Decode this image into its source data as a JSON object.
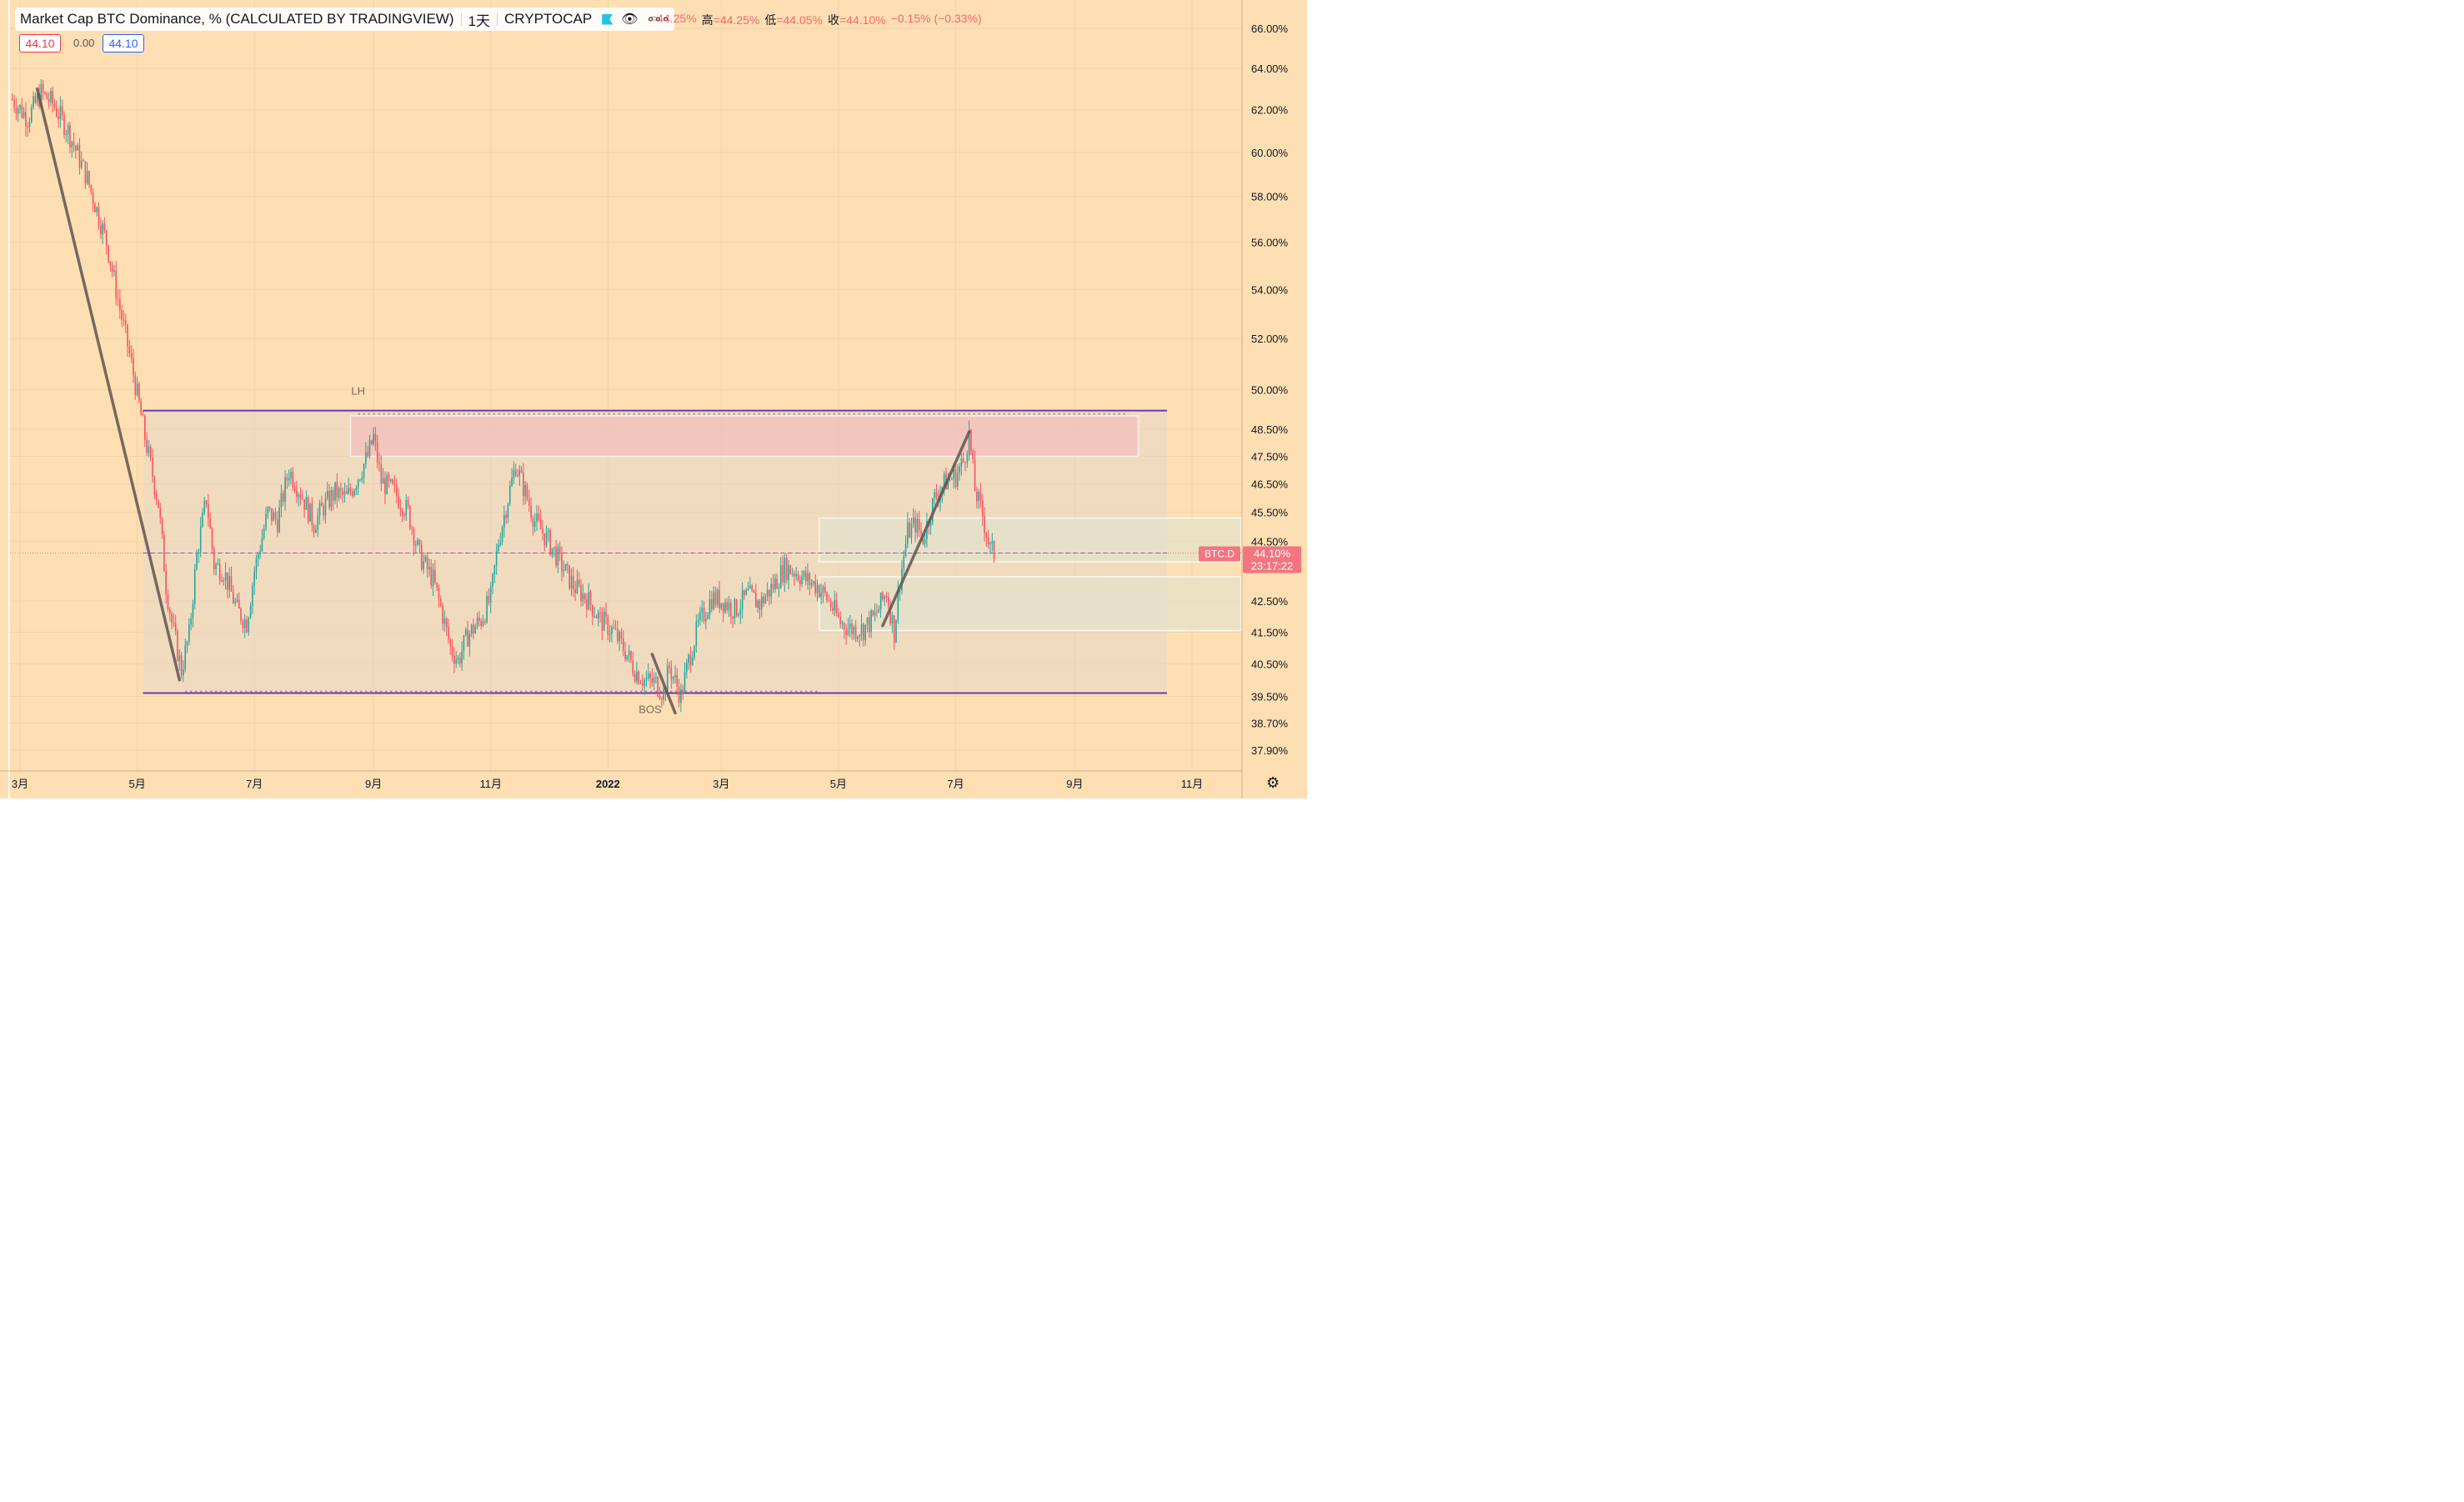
{
  "header": {
    "title": "Market Cap BTC Dominance, % (CALCULATED BY TRADINGVIEW)",
    "interval": "1天",
    "exchange": "CRYPTOCAP",
    "ohlc": [
      {
        "label": "",
        "value": "=44.25%"
      },
      {
        "label": "高",
        "value": "=44.25%"
      },
      {
        "label": "低",
        "value": "=44.05%"
      },
      {
        "label": "收",
        "value": "=44.10%"
      },
      {
        "label": "",
        "value": "−0.15% (−0.33%)"
      }
    ],
    "price_left": "44.10",
    "price_mid": "0.00",
    "price_right": "44.10"
  },
  "icons": {
    "eye": "eye-icon",
    "more": "more-icon",
    "gear": "gear-icon",
    "flag": "flag-icon"
  },
  "colors": {
    "background": "#fedfb3",
    "up": "#26a69a",
    "down": "#f7525f",
    "range_line": "#673ab7",
    "trend_line": "#5d5550",
    "price_tag": "#f2757f"
  },
  "chart_data": {
    "type": "candlestick",
    "title": "Market Cap BTC Dominance, % (CALCULATED BY TRADINGVIEW)",
    "ylim": [
      37.5,
      67.0
    ],
    "y_scale": "log",
    "y_ticks": [
      "66.00%",
      "64.00%",
      "62.00%",
      "60.00%",
      "58.00%",
      "56.00%",
      "54.00%",
      "52.00%",
      "50.00%",
      "48.50%",
      "47.50%",
      "46.50%",
      "45.50%",
      "44.50%",
      "42.50%",
      "41.50%",
      "40.50%",
      "39.50%",
      "38.70%",
      "37.90%"
    ],
    "y_tick_values": [
      66,
      64,
      62,
      60,
      58,
      56,
      54,
      52,
      50,
      48.5,
      47.5,
      46.5,
      45.5,
      44.5,
      42.5,
      41.5,
      40.5,
      39.5,
      38.7,
      37.9
    ],
    "x_ticks": [
      {
        "label": "3月",
        "date": "2021-03-01"
      },
      {
        "label": "5月",
        "date": "2021-05-01"
      },
      {
        "label": "7月",
        "date": "2021-07-01"
      },
      {
        "label": "9月",
        "date": "2021-09-01"
      },
      {
        "label": "11月",
        "date": "2021-11-01"
      },
      {
        "label": "2022",
        "date": "2022-01-01"
      },
      {
        "label": "3月",
        "date": "2022-03-01"
      },
      {
        "label": "5月",
        "date": "2022-05-01"
      },
      {
        "label": "7月",
        "date": "2022-07-01"
      },
      {
        "label": "9月",
        "date": "2022-09-01"
      },
      {
        "label": "11月",
        "date": "2022-11-01"
      }
    ],
    "series": [
      {
        "kind": "close_path",
        "points": [
          [
            "2021-02-25",
            62.5
          ],
          [
            "2021-03-05",
            61.6
          ],
          [
            "2021-03-12",
            62.8
          ],
          [
            "2021-03-18",
            62.3
          ],
          [
            "2021-03-26",
            61.0
          ],
          [
            "2021-04-05",
            58.8
          ],
          [
            "2021-04-15",
            56.0
          ],
          [
            "2021-04-22",
            53.2
          ],
          [
            "2021-04-28",
            51.0
          ],
          [
            "2021-05-05",
            48.2
          ],
          [
            "2021-05-12",
            45.8
          ],
          [
            "2021-05-16",
            43.0
          ],
          [
            "2021-05-19",
            41.8
          ],
          [
            "2021-05-24",
            40.3
          ],
          [
            "2021-05-28",
            41.4
          ],
          [
            "2021-06-01",
            44.0
          ],
          [
            "2021-06-06",
            46.0
          ],
          [
            "2021-06-10",
            43.7
          ],
          [
            "2021-06-15",
            43.5
          ],
          [
            "2021-06-22",
            42.2
          ],
          [
            "2021-06-27",
            41.8
          ],
          [
            "2021-07-01",
            43.5
          ],
          [
            "2021-07-08",
            45.5
          ],
          [
            "2021-07-13",
            45.2
          ],
          [
            "2021-07-19",
            47.0
          ],
          [
            "2021-07-25",
            46.2
          ],
          [
            "2021-08-01",
            45.1
          ],
          [
            "2021-08-06",
            45.7
          ],
          [
            "2021-08-12",
            46.2
          ],
          [
            "2021-08-18",
            46.0
          ],
          [
            "2021-08-22",
            46.5
          ],
          [
            "2021-08-29",
            47.5
          ],
          [
            "2021-09-01",
            48.2
          ],
          [
            "2021-09-05",
            46.6
          ],
          [
            "2021-09-12",
            46.2
          ],
          [
            "2021-09-19",
            45.5
          ],
          [
            "2021-09-25",
            44.0
          ],
          [
            "2021-10-02",
            43.2
          ],
          [
            "2021-10-06",
            42.3
          ],
          [
            "2021-10-11",
            41.0
          ],
          [
            "2021-10-15",
            40.6
          ],
          [
            "2021-10-20",
            41.4
          ],
          [
            "2021-10-27",
            41.9
          ],
          [
            "2021-11-01",
            42.6
          ],
          [
            "2021-11-05",
            44.5
          ],
          [
            "2021-11-10",
            46.0
          ],
          [
            "2021-11-14",
            47.2
          ],
          [
            "2021-11-19",
            46.2
          ],
          [
            "2021-11-24",
            45.2
          ],
          [
            "2021-12-01",
            44.5
          ],
          [
            "2021-12-07",
            43.8
          ],
          [
            "2021-12-14",
            43.0
          ],
          [
            "2021-12-21",
            42.6
          ],
          [
            "2021-12-28",
            41.9
          ],
          [
            "2022-01-04",
            41.5
          ],
          [
            "2022-01-10",
            40.9
          ],
          [
            "2022-01-15",
            40.3
          ],
          [
            "2022-01-20",
            40.0
          ],
          [
            "2022-01-26",
            39.9
          ],
          [
            "2022-01-30",
            39.6
          ],
          [
            "2022-02-02",
            40.4
          ],
          [
            "2022-02-08",
            39.5
          ],
          [
            "2022-02-12",
            40.6
          ],
          [
            "2022-02-17",
            41.7
          ],
          [
            "2022-02-24",
            42.6
          ],
          [
            "2022-03-02",
            42.5
          ],
          [
            "2022-03-08",
            42.2
          ],
          [
            "2022-03-15",
            42.7
          ],
          [
            "2022-03-21",
            42.4
          ],
          [
            "2022-03-28",
            43.0
          ],
          [
            "2022-04-03",
            43.6
          ],
          [
            "2022-04-08",
            43.5
          ],
          [
            "2022-04-14",
            43.2
          ],
          [
            "2022-04-20",
            43.0
          ],
          [
            "2022-04-26",
            42.5
          ],
          [
            "2022-05-02",
            41.8
          ],
          [
            "2022-05-08",
            41.6
          ],
          [
            "2022-05-14",
            41.6
          ],
          [
            "2022-05-20",
            42.0
          ],
          [
            "2022-05-26",
            42.8
          ],
          [
            "2022-05-30",
            41.5
          ],
          [
            "2022-06-02",
            43.2
          ],
          [
            "2022-06-06",
            44.8
          ],
          [
            "2022-06-10",
            45.1
          ],
          [
            "2022-06-14",
            44.6
          ],
          [
            "2022-06-20",
            46.0
          ],
          [
            "2022-06-26",
            46.6
          ],
          [
            "2022-07-01",
            46.8
          ],
          [
            "2022-07-05",
            47.3
          ],
          [
            "2022-07-08",
            48.3
          ],
          [
            "2022-07-11",
            46.3
          ],
          [
            "2022-07-15",
            45.4
          ],
          [
            "2022-07-19",
            44.2
          ],
          [
            "2022-07-21",
            44.1
          ]
        ]
      }
    ],
    "annotations": [
      {
        "text": "LH",
        "date": "2021-03-12",
        "value": 65.3
      },
      {
        "text": "LH",
        "date": "2021-08-24",
        "value": 49.8
      },
      {
        "text": "BOS",
        "date": "2022-01-23",
        "value": 39.0
      }
    ],
    "horizontal_lines": [
      {
        "name": "resistance",
        "value": 49.2,
        "from": "2021-05-04",
        "to": "2022-10-19"
      },
      {
        "name": "support",
        "value": 39.6,
        "from": "2021-05-04",
        "to": "2022-10-19"
      },
      {
        "name": "current",
        "value": 44.1,
        "style": "dashed"
      }
    ],
    "zones": [
      {
        "name": "range",
        "from": "2021-05-04",
        "to": "2022-10-19",
        "y": [
          39.6,
          49.2
        ]
      },
      {
        "name": "supply",
        "from": "2021-08-20",
        "to": "2022-10-04",
        "y": [
          47.5,
          49.0
        ]
      },
      {
        "name": "demand-1",
        "from": "2022-04-21",
        "to": "2022-11-28",
        "y": [
          43.8,
          45.3
        ]
      },
      {
        "name": "demand-2",
        "from": "2022-04-21",
        "to": "2022-11-28",
        "y": [
          41.55,
          43.3
        ]
      }
    ],
    "trend_lines": [
      {
        "from": [
          "2021-03-10",
          63.0
        ],
        "to": [
          "2021-05-23",
          40.0
        ]
      },
      {
        "from": [
          "2022-01-24",
          40.8
        ],
        "to": [
          "2022-02-05",
          39.0
        ]
      },
      {
        "from": [
          "2022-05-24",
          41.7
        ],
        "to": [
          "2022-07-08",
          48.4
        ]
      }
    ],
    "symbol_tag": "BTC.D",
    "last_price": "44.10%",
    "countdown": "23:17:22",
    "last_value": 44.1
  }
}
